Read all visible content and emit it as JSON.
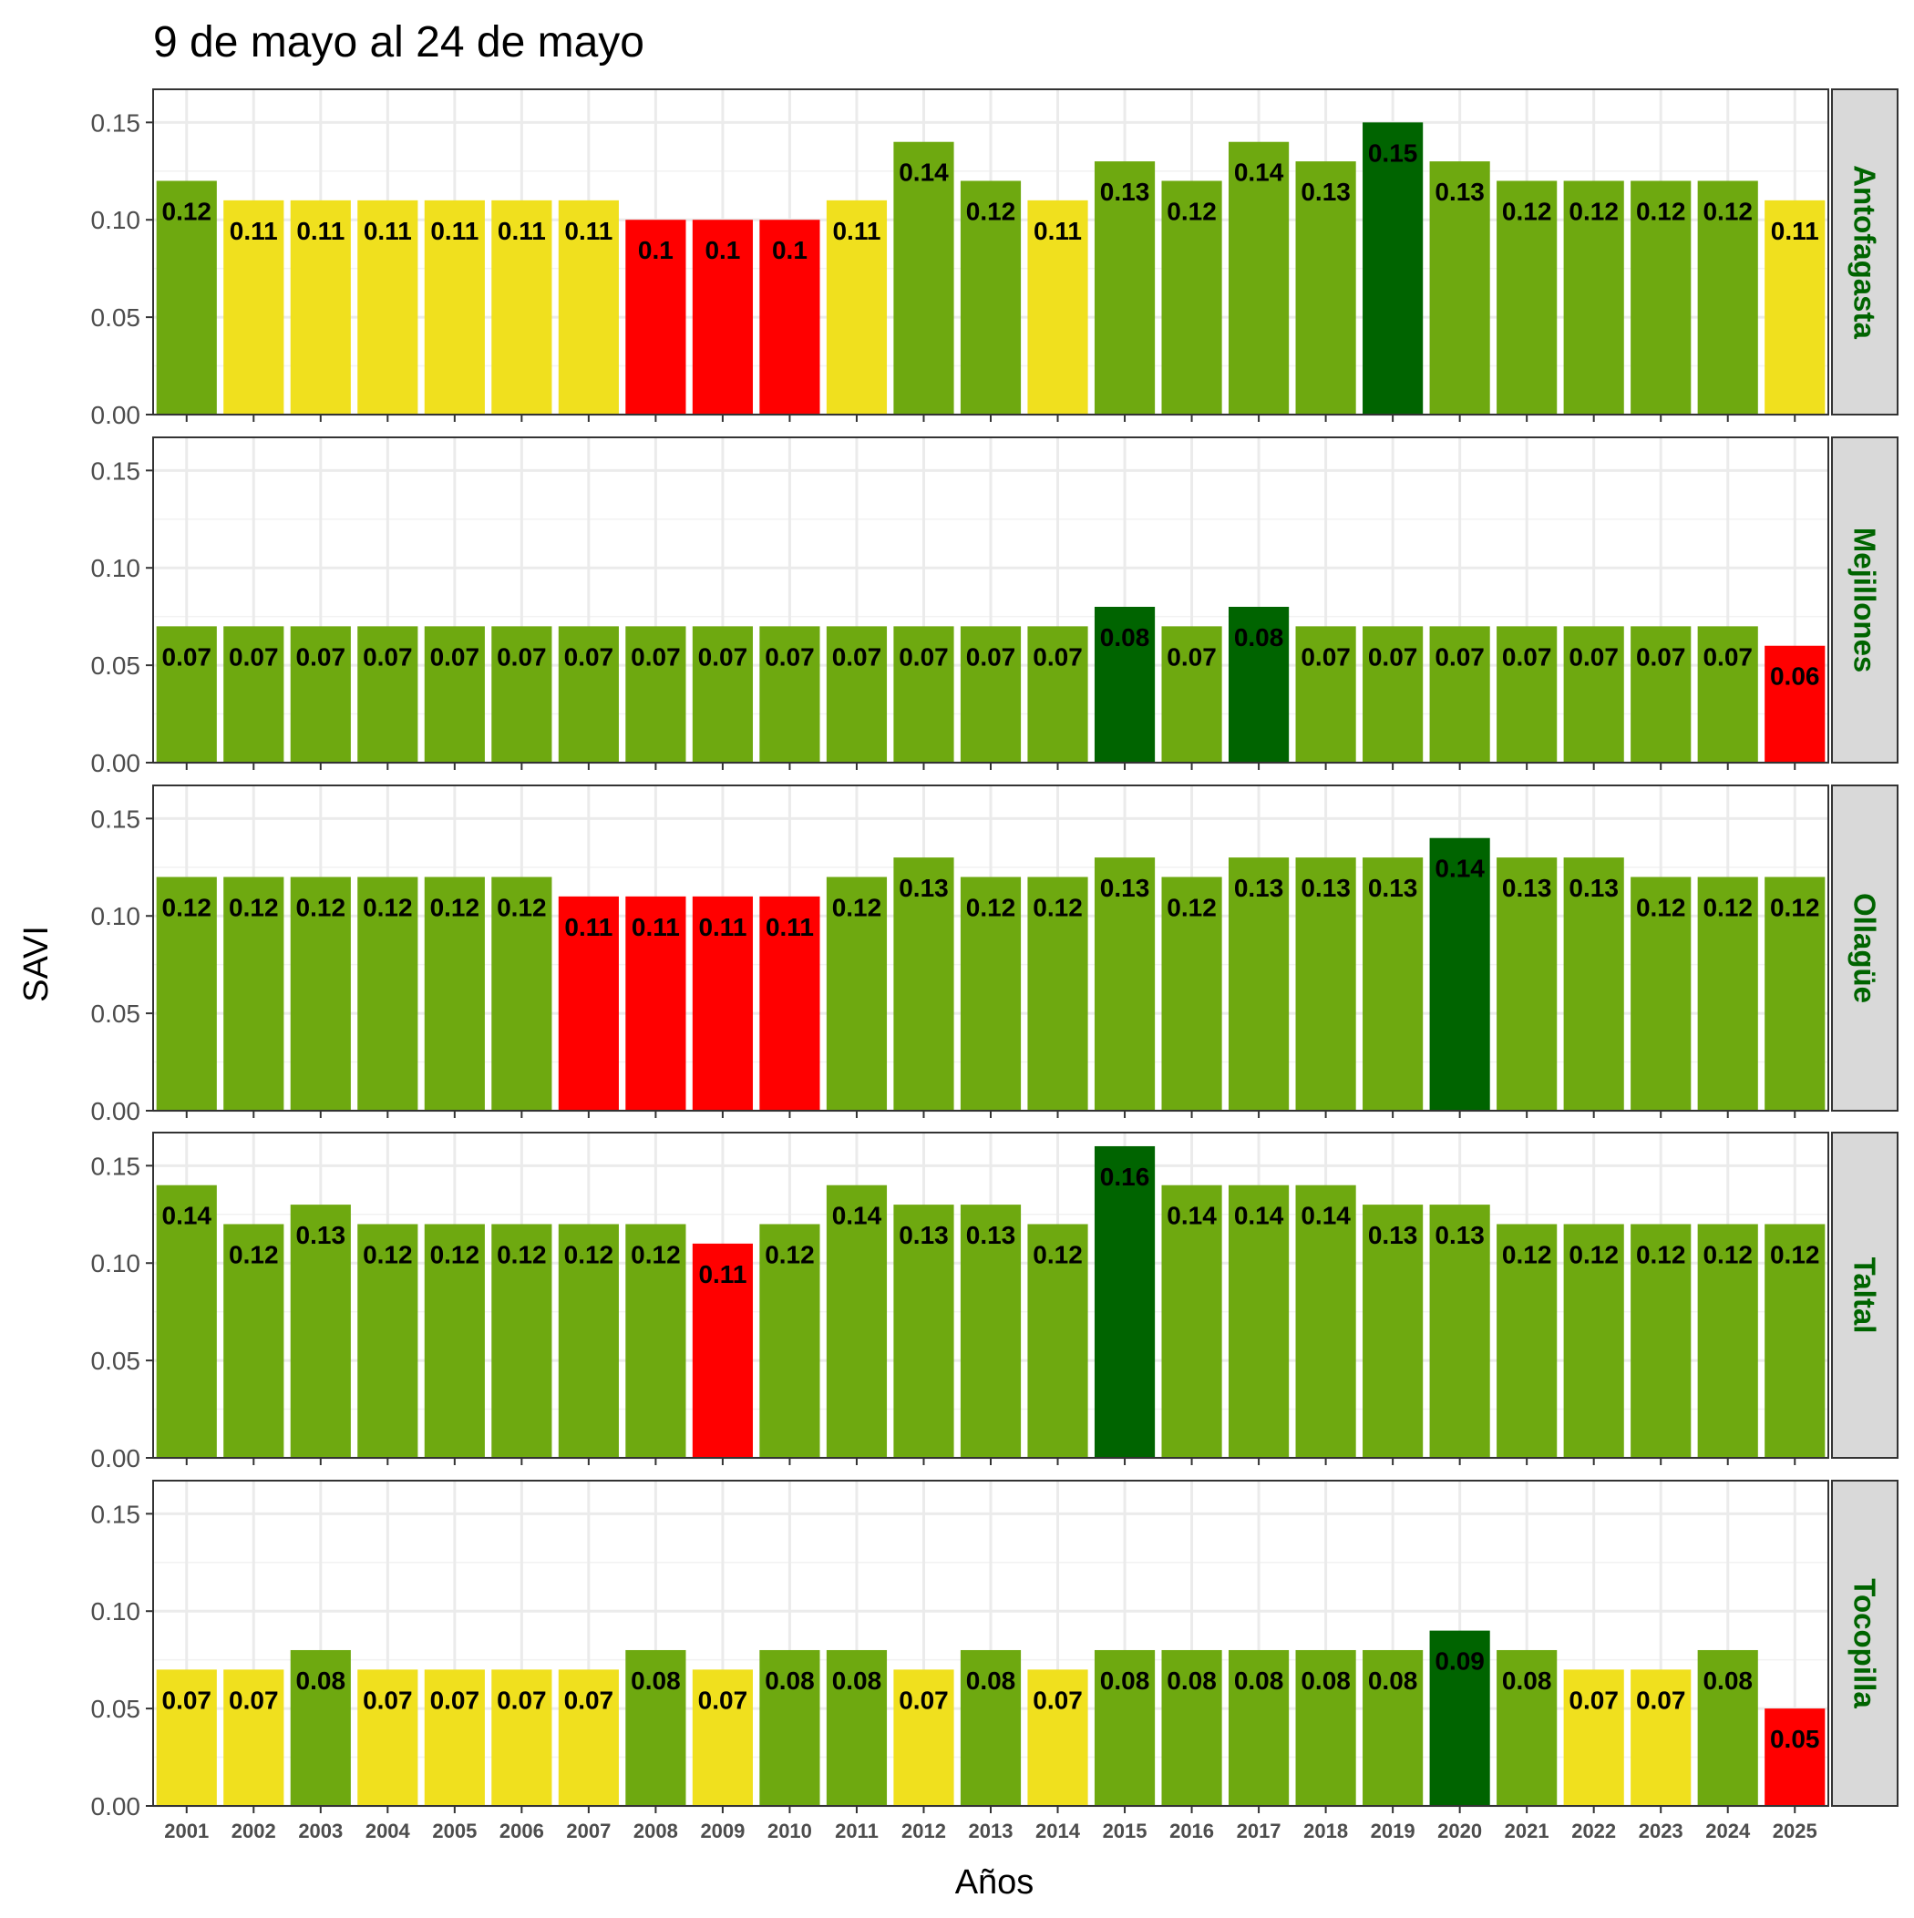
{
  "chart_data": {
    "type": "bar",
    "title": "9 de mayo al 24 de mayo",
    "xlabel": "Años",
    "ylabel": "SAVI",
    "ylim": [
      0,
      0.167
    ],
    "yticks": [
      "0.00",
      "0.05",
      "0.10",
      "0.15"
    ],
    "grid": true,
    "legend": "none",
    "categories": [
      "2001",
      "2002",
      "2003",
      "2004",
      "2005",
      "2006",
      "2007",
      "2008",
      "2009",
      "2010",
      "2011",
      "2012",
      "2013",
      "2014",
      "2015",
      "2016",
      "2017",
      "2018",
      "2019",
      "2020",
      "2021",
      "2022",
      "2023",
      "2024",
      "2025"
    ],
    "colors": {
      "dark_green": "#006400",
      "green": "#6ea910",
      "yellow": "#f0e01e",
      "red": "#ff0000"
    },
    "panels": [
      {
        "name": "Antofagasta",
        "values": [
          0.12,
          0.11,
          0.11,
          0.11,
          0.11,
          0.11,
          0.11,
          0.1,
          0.1,
          0.1,
          0.11,
          0.14,
          0.12,
          0.11,
          0.13,
          0.12,
          0.14,
          0.13,
          0.15,
          0.13,
          0.12,
          0.12,
          0.12,
          0.12,
          0.11
        ],
        "labels": [
          "0.12",
          "0.11",
          "0.11",
          "0.11",
          "0.11",
          "0.11",
          "0.11",
          "0.1",
          "0.1",
          "0.1",
          "0.11",
          "0.14",
          "0.12",
          "0.11",
          "0.13",
          "0.12",
          "0.14",
          "0.13",
          "0.15",
          "0.13",
          "0.12",
          "0.12",
          "0.12",
          "0.12",
          "0.11"
        ],
        "bar_colors": [
          "green",
          "yellow",
          "yellow",
          "yellow",
          "yellow",
          "yellow",
          "yellow",
          "red",
          "red",
          "red",
          "yellow",
          "green",
          "green",
          "yellow",
          "green",
          "green",
          "green",
          "green",
          "dark_green",
          "green",
          "green",
          "green",
          "green",
          "green",
          "yellow"
        ]
      },
      {
        "name": "Mejillones",
        "values": [
          0.07,
          0.07,
          0.07,
          0.07,
          0.07,
          0.07,
          0.07,
          0.07,
          0.07,
          0.07,
          0.07,
          0.07,
          0.07,
          0.07,
          0.08,
          0.07,
          0.08,
          0.07,
          0.07,
          0.07,
          0.07,
          0.07,
          0.07,
          0.07,
          0.06
        ],
        "labels": [
          "0.07",
          "0.07",
          "0.07",
          "0.07",
          "0.07",
          "0.07",
          "0.07",
          "0.07",
          "0.07",
          "0.07",
          "0.07",
          "0.07",
          "0.07",
          "0.07",
          "0.08",
          "0.07",
          "0.08",
          "0.07",
          "0.07",
          "0.07",
          "0.07",
          "0.07",
          "0.07",
          "0.07",
          "0.06"
        ],
        "bar_colors": [
          "green",
          "green",
          "green",
          "green",
          "green",
          "green",
          "green",
          "green",
          "green",
          "green",
          "green",
          "green",
          "green",
          "green",
          "dark_green",
          "green",
          "dark_green",
          "green",
          "green",
          "green",
          "green",
          "green",
          "green",
          "green",
          "red"
        ]
      },
      {
        "name": "Ollagüe",
        "values": [
          0.12,
          0.12,
          0.12,
          0.12,
          0.12,
          0.12,
          0.11,
          0.11,
          0.11,
          0.11,
          0.12,
          0.13,
          0.12,
          0.12,
          0.13,
          0.12,
          0.13,
          0.13,
          0.13,
          0.14,
          0.13,
          0.13,
          0.12,
          0.12,
          0.12
        ],
        "labels": [
          "0.12",
          "0.12",
          "0.12",
          "0.12",
          "0.12",
          "0.12",
          "0.11",
          "0.11",
          "0.11",
          "0.11",
          "0.12",
          "0.13",
          "0.12",
          "0.12",
          "0.13",
          "0.12",
          "0.13",
          "0.13",
          "0.13",
          "0.14",
          "0.13",
          "0.13",
          "0.12",
          "0.12",
          "0.12"
        ],
        "bar_colors": [
          "green",
          "green",
          "green",
          "green",
          "green",
          "green",
          "red",
          "red",
          "red",
          "red",
          "green",
          "green",
          "green",
          "green",
          "green",
          "green",
          "green",
          "green",
          "green",
          "dark_green",
          "green",
          "green",
          "green",
          "green",
          "green"
        ]
      },
      {
        "name": "Taltal",
        "values": [
          0.14,
          0.12,
          0.13,
          0.12,
          0.12,
          0.12,
          0.12,
          0.12,
          0.11,
          0.12,
          0.14,
          0.13,
          0.13,
          0.12,
          0.16,
          0.14,
          0.14,
          0.14,
          0.13,
          0.13,
          0.12,
          0.12,
          0.12,
          0.12,
          0.12
        ],
        "labels": [
          "0.14",
          "0.12",
          "0.13",
          "0.12",
          "0.12",
          "0.12",
          "0.12",
          "0.12",
          "0.11",
          "0.12",
          "0.14",
          "0.13",
          "0.13",
          "0.12",
          "0.16",
          "0.14",
          "0.14",
          "0.14",
          "0.13",
          "0.13",
          "0.12",
          "0.12",
          "0.12",
          "0.12",
          "0.12"
        ],
        "bar_colors": [
          "green",
          "green",
          "green",
          "green",
          "green",
          "green",
          "green",
          "green",
          "red",
          "green",
          "green",
          "green",
          "green",
          "green",
          "dark_green",
          "green",
          "green",
          "green",
          "green",
          "green",
          "green",
          "green",
          "green",
          "green",
          "green"
        ]
      },
      {
        "name": "Tocopilla",
        "values": [
          0.07,
          0.07,
          0.08,
          0.07,
          0.07,
          0.07,
          0.07,
          0.08,
          0.07,
          0.08,
          0.08,
          0.07,
          0.08,
          0.07,
          0.08,
          0.08,
          0.08,
          0.08,
          0.08,
          0.09,
          0.08,
          0.07,
          0.07,
          0.08,
          0.05
        ],
        "labels": [
          "0.07",
          "0.07",
          "0.08",
          "0.07",
          "0.07",
          "0.07",
          "0.07",
          "0.08",
          "0.07",
          "0.08",
          "0.08",
          "0.07",
          "0.08",
          "0.07",
          "0.08",
          "0.08",
          "0.08",
          "0.08",
          "0.08",
          "0.09",
          "0.08",
          "0.07",
          "0.07",
          "0.08",
          "0.05"
        ],
        "bar_colors": [
          "yellow",
          "yellow",
          "green",
          "yellow",
          "yellow",
          "yellow",
          "yellow",
          "green",
          "yellow",
          "green",
          "green",
          "yellow",
          "green",
          "yellow",
          "green",
          "green",
          "green",
          "green",
          "green",
          "dark_green",
          "green",
          "yellow",
          "yellow",
          "green",
          "red"
        ]
      }
    ]
  }
}
